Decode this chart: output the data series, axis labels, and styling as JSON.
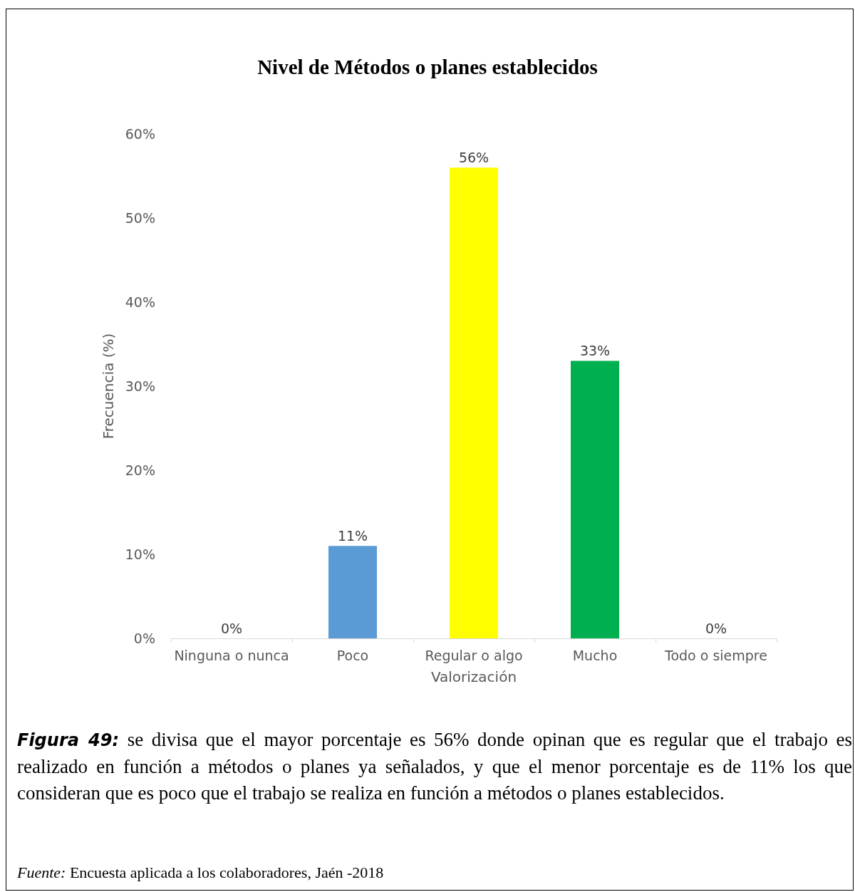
{
  "chart_data": {
    "type": "bar",
    "title": "Nivel de Métodos o planes establecidos",
    "xlabel": "Valorización",
    "ylabel": "Frecuencia (%)",
    "categories": [
      "Ninguna o nunca",
      "Poco",
      "Regular o algo",
      "Mucho",
      "Todo o siempre"
    ],
    "values": [
      0,
      11,
      56,
      33,
      0
    ],
    "colors": [
      "#5b9bd5",
      "#5b9bd5",
      "#ffff00",
      "#00b050",
      "#5b9bd5"
    ],
    "value_labels": [
      "0%",
      "11%",
      "56%",
      "33%",
      "0%"
    ],
    "ylim": [
      0,
      60
    ],
    "yticks": [
      {
        "value": 0,
        "label": "0%"
      },
      {
        "value": 10,
        "label": "10%"
      },
      {
        "value": 20,
        "label": "20%"
      },
      {
        "value": 30,
        "label": "30%"
      },
      {
        "value": 40,
        "label": "40%"
      },
      {
        "value": 50,
        "label": "50%"
      },
      {
        "value": 60,
        "label": "60%"
      }
    ],
    "grid": false,
    "annotations": [
      "Figura 49:",
      "se divisa que el mayor porcentaje es 56% donde opinan que es regular que el trabajo es realizado en función a métodos o planes ya señalados, y que el menor porcentaje es de 11% los que consideran que es poco que el trabajo se realiza en función a métodos o planes establecidos.",
      "Fuente:",
      "Encuesta aplicada a los colaboradores, Jaén -2018"
    ]
  }
}
